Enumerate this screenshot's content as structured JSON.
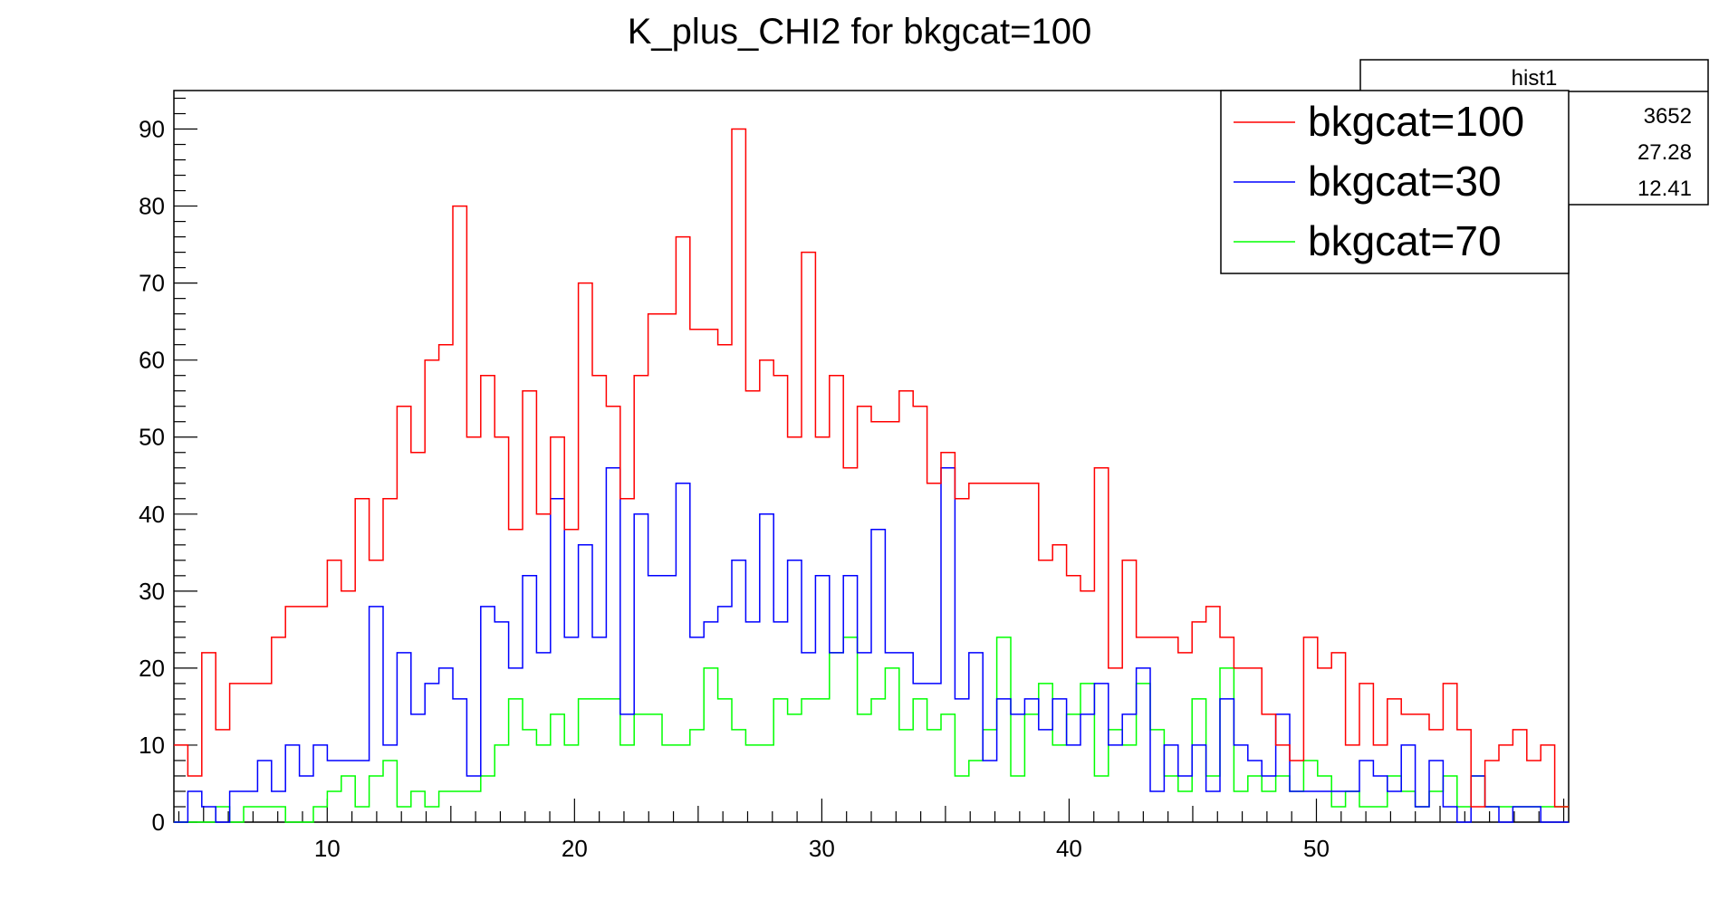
{
  "chart_data": {
    "type": "histogram",
    "title": "K_plus_CHI2 for bkgcat=100",
    "xlabel": "",
    "ylabel": "",
    "xlim": [
      3.8,
      60.2
    ],
    "ylim": [
      0,
      95
    ],
    "bin_start": 3.8,
    "bin_width": 0.564,
    "x_ticks": [
      10,
      20,
      30,
      40,
      50
    ],
    "y_ticks": [
      0,
      10,
      20,
      30,
      40,
      50,
      60,
      70,
      80,
      90
    ],
    "grid": false,
    "series": [
      {
        "name": "bkgcat=100",
        "color": "#ff0000",
        "values": [
          10,
          6,
          22,
          12,
          18,
          18,
          18,
          24,
          28,
          28,
          28,
          34,
          30,
          42,
          34,
          42,
          54,
          48,
          60,
          62,
          80,
          50,
          58,
          50,
          38,
          56,
          40,
          50,
          38,
          70,
          58,
          54,
          42,
          58,
          66,
          66,
          76,
          64,
          64,
          62,
          90,
          56,
          60,
          58,
          50,
          74,
          50,
          58,
          46,
          54,
          52,
          52,
          56,
          54,
          44,
          48,
          42,
          44,
          44,
          44,
          44,
          44,
          34,
          36,
          32,
          30,
          46,
          20,
          34,
          24,
          24,
          24,
          22,
          26,
          28,
          24,
          20,
          20,
          14,
          10,
          8,
          24,
          20,
          22,
          10,
          18,
          10,
          16,
          14,
          14,
          12,
          18,
          12,
          2,
          8,
          10,
          12,
          8,
          10,
          2
        ]
      },
      {
        "name": "bkgcat=30",
        "color": "#0000ff",
        "values": [
          0,
          4,
          2,
          0,
          4,
          4,
          8,
          4,
          10,
          6,
          10,
          8,
          8,
          8,
          28,
          10,
          22,
          14,
          18,
          20,
          16,
          6,
          28,
          26,
          20,
          32,
          22,
          42,
          24,
          36,
          24,
          46,
          14,
          40,
          32,
          32,
          44,
          24,
          26,
          28,
          34,
          26,
          40,
          26,
          34,
          22,
          32,
          22,
          32,
          22,
          38,
          22,
          22,
          18,
          18,
          46,
          16,
          22,
          8,
          16,
          14,
          16,
          12,
          16,
          10,
          14,
          18,
          10,
          14,
          20,
          4,
          10,
          6,
          10,
          4,
          16,
          10,
          8,
          6,
          14,
          4,
          4,
          4,
          4,
          4,
          8,
          6,
          4,
          10,
          2,
          8,
          2,
          0,
          6,
          2,
          0,
          2,
          2,
          0,
          0
        ]
      },
      {
        "name": "bkgcat=70",
        "color": "#00ff00",
        "values": [
          0,
          0,
          0,
          2,
          0,
          2,
          2,
          2,
          0,
          0,
          2,
          4,
          6,
          2,
          6,
          8,
          2,
          4,
          2,
          4,
          4,
          4,
          6,
          10,
          16,
          12,
          10,
          14,
          10,
          16,
          16,
          16,
          10,
          14,
          14,
          10,
          10,
          12,
          20,
          16,
          12,
          10,
          10,
          16,
          14,
          16,
          16,
          22,
          24,
          14,
          16,
          20,
          12,
          16,
          12,
          14,
          6,
          8,
          12,
          24,
          6,
          14,
          18,
          10,
          14,
          18,
          6,
          12,
          10,
          18,
          12,
          6,
          4,
          16,
          6,
          20,
          4,
          6,
          4,
          6,
          4,
          8,
          6,
          2,
          4,
          2,
          2,
          6,
          4,
          2,
          4,
          6,
          2,
          6,
          2,
          2,
          2,
          2,
          2,
          2
        ]
      }
    ],
    "legend": {
      "placement": "top-right",
      "entries": [
        "bkgcat=100",
        "bkgcat=30",
        "bkgcat=70"
      ]
    },
    "stats_box": {
      "name": "hist1",
      "values": [
        "3652",
        "27.28",
        "12.41"
      ]
    }
  }
}
